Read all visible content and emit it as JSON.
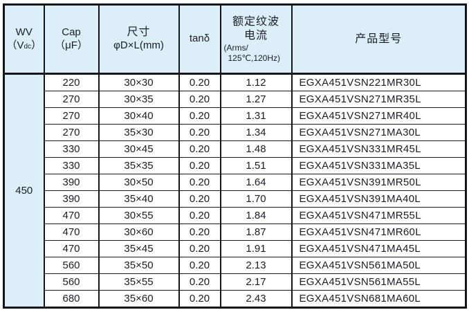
{
  "colors": {
    "header_bg": "#dceef8",
    "border": "#14151a",
    "text": "#1b1c26"
  },
  "table": {
    "header": {
      "wv": {
        "line1": "WV",
        "l2_pre": "（V",
        "l2_sub": "dc",
        "l2_post": "）"
      },
      "cap": {
        "line1": "Cap",
        "line2": "（μF）"
      },
      "size": {
        "line1": "尺寸",
        "line2": "φD×L(mm)"
      },
      "tan": {
        "line1": "tanδ"
      },
      "ripple": {
        "line1": "额定纹波",
        "line2": "电流",
        "line3": "(Arms/",
        "line4": "125℃,120Hz)"
      },
      "model": {
        "line1": "产品型号"
      }
    },
    "wv_value": "450",
    "rows": [
      {
        "cap": "220",
        "size": "30×30",
        "tan": "0.20",
        "ripple": "1.12",
        "model": "EGXA451VSN221MR30L"
      },
      {
        "cap": "270",
        "size": "30×35",
        "tan": "0.20",
        "ripple": "1.27",
        "model": "EGXA451VSN271MR35L"
      },
      {
        "cap": "270",
        "size": "30×40",
        "tan": "0.20",
        "ripple": "1.31",
        "model": "EGXA451VSN271MR40L"
      },
      {
        "cap": "270",
        "size": "35×30",
        "tan": "0.20",
        "ripple": "1.34",
        "model": "EGXA451VSN271MA30L"
      },
      {
        "cap": "330",
        "size": "30×45",
        "tan": "0.20",
        "ripple": "1.48",
        "model": "EGXA451VSN331MR45L"
      },
      {
        "cap": "330",
        "size": "35×35",
        "tan": "0.20",
        "ripple": "1.51",
        "model": "EGXA451VSN331MA35L"
      },
      {
        "cap": "390",
        "size": "30×50",
        "tan": "0.20",
        "ripple": "1.64",
        "model": "EGXA451VSN391MR50L"
      },
      {
        "cap": "390",
        "size": "35×40",
        "tan": "0.20",
        "ripple": "1.70",
        "model": "EGXA451VSN391MA40L"
      },
      {
        "cap": "470",
        "size": "30×55",
        "tan": "0.20",
        "ripple": "1.84",
        "model": "EGXA451VSN471MR55L"
      },
      {
        "cap": "470",
        "size": "30×60",
        "tan": "0.20",
        "ripple": "1.87",
        "model": "EGXA451VSN471MR60L"
      },
      {
        "cap": "470",
        "size": "35×45",
        "tan": "0.20",
        "ripple": "1.91",
        "model": "EGXA451VSN471MA45L"
      },
      {
        "cap": "560",
        "size": "35×50",
        "tan": "0.20",
        "ripple": "2.13",
        "model": "EGXA451VSN561MA50L"
      },
      {
        "cap": "560",
        "size": "35×55",
        "tan": "0.20",
        "ripple": "2.17",
        "model": "EGXA451VSN561MA55L"
      },
      {
        "cap": "680",
        "size": "35×60",
        "tan": "0.20",
        "ripple": "2.43",
        "model": "EGXA451VSN681MA60L"
      }
    ]
  }
}
